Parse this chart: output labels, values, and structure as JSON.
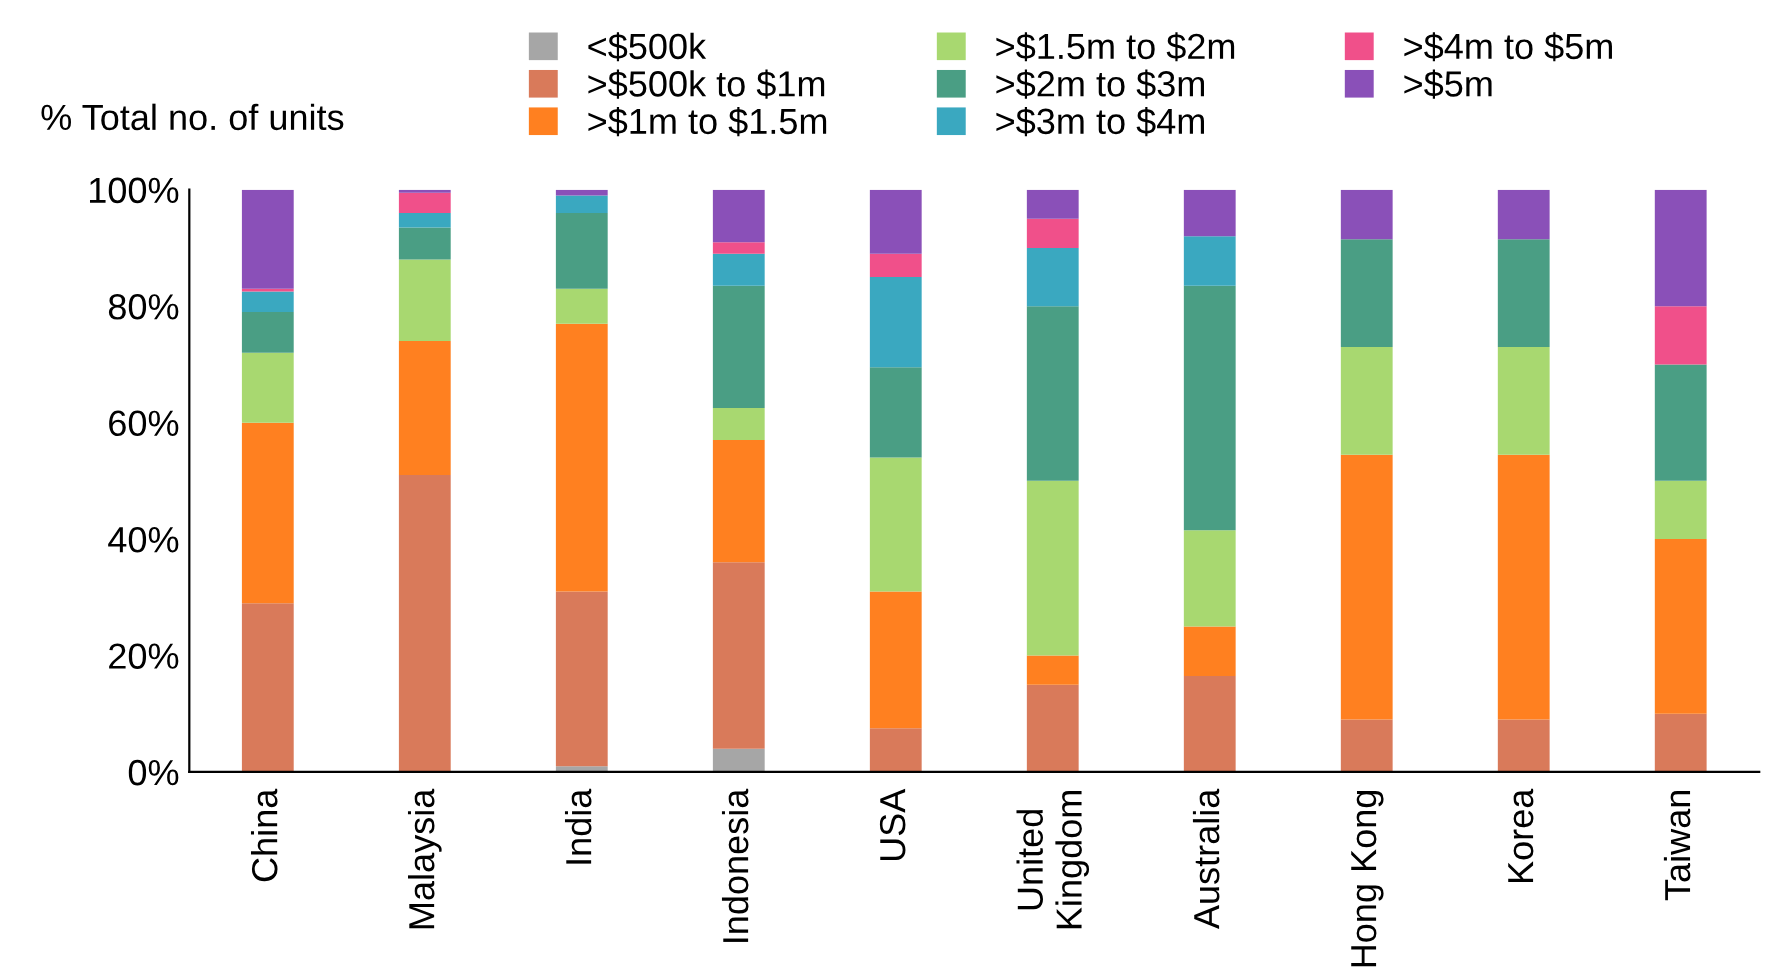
{
  "chart_data": {
    "type": "bar",
    "stacked": true,
    "ylabel": "% Total no. of units",
    "categories": [
      "China",
      "Malaysia",
      "India",
      "Indonesia",
      "USA",
      "United Kingdom",
      "Australia",
      "Hong Kong",
      "Korea",
      "Taiwan"
    ],
    "series": [
      {
        "name": "<$500k",
        "color": "#a6a6a6",
        "values": [
          0,
          0,
          1,
          4,
          0,
          0,
          0,
          0,
          0,
          0
        ]
      },
      {
        "name": ">$500k to $1m",
        "color": "#d97a5a",
        "values": [
          29,
          51,
          30,
          32,
          7.5,
          15,
          16.5,
          9,
          9,
          10
        ]
      },
      {
        "name": ">$1m to $1.5m",
        "color": "#ff8020",
        "values": [
          31,
          23,
          46,
          21,
          23.5,
          5,
          8.5,
          45.5,
          45.5,
          30
        ]
      },
      {
        "name": ">$1.5m to $2m",
        "color": "#a8d870",
        "values": [
          12,
          14,
          6,
          5.5,
          23,
          30,
          16.5,
          18.5,
          18.5,
          10
        ]
      },
      {
        "name": ">$2m to $3m",
        "color": "#4a9e84",
        "values": [
          7,
          5.5,
          13,
          21,
          15.5,
          30,
          42,
          18.5,
          18.5,
          20
        ]
      },
      {
        "name": ">$3m to $4m",
        "color": "#3aa8c0",
        "values": [
          3.5,
          2.5,
          3,
          5.5,
          15.5,
          10,
          8.5,
          0,
          0,
          0
        ]
      },
      {
        "name": ">$4m to $5m",
        "color": "#f0508a",
        "values": [
          0.5,
          3.5,
          0,
          2,
          4,
          5,
          0,
          0,
          0,
          10
        ]
      },
      {
        "name": ">$5m",
        "color": "#8a50b8",
        "values": [
          17,
          0.5,
          1,
          9,
          11,
          5,
          8,
          8.5,
          8.5,
          20
        ]
      }
    ],
    "ylim": [
      0,
      100
    ],
    "yticks": [
      {
        "value": 0,
        "label": "0%"
      },
      {
        "value": 20,
        "label": "20%"
      },
      {
        "value": 40,
        "label": "40%"
      },
      {
        "value": 60,
        "label": "60%"
      },
      {
        "value": 80,
        "label": "80%"
      },
      {
        "value": 100,
        "label": "100%"
      }
    ],
    "grid": false,
    "legend": "top"
  }
}
